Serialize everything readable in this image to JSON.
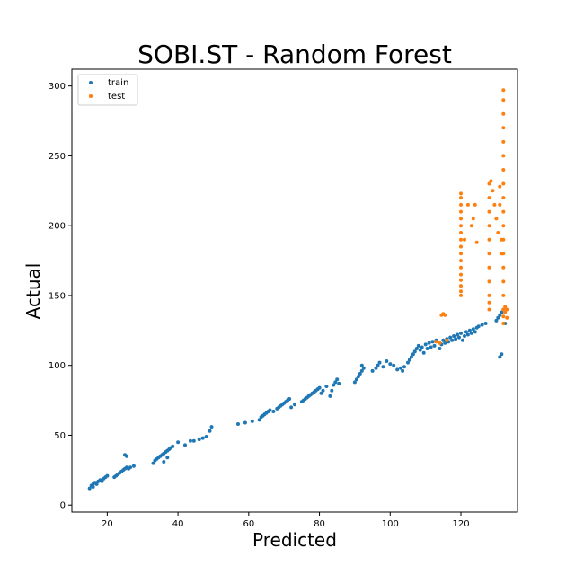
{
  "chart_data": {
    "type": "scatter",
    "title": "SOBI.ST - Random Forest",
    "xlabel": "Predicted",
    "ylabel": "Actual",
    "xlim": [
      10,
      136
    ],
    "ylim": [
      -5,
      312
    ],
    "xticks": [
      20,
      40,
      60,
      80,
      100,
      120
    ],
    "yticks": [
      0,
      50,
      100,
      150,
      200,
      250,
      300
    ],
    "grid": false,
    "legend_position": "top-left",
    "series": [
      {
        "name": "train",
        "color": "#1f77b4",
        "points": [
          [
            15,
            12
          ],
          [
            15.5,
            14
          ],
          [
            16,
            15
          ],
          [
            16.5,
            16
          ],
          [
            17,
            15
          ],
          [
            17.5,
            17
          ],
          [
            18,
            18
          ],
          [
            18.5,
            17
          ],
          [
            19,
            19
          ],
          [
            19.5,
            20
          ],
          [
            20,
            21
          ],
          [
            16,
            13
          ],
          [
            17,
            16
          ],
          [
            22,
            20
          ],
          [
            22.5,
            21
          ],
          [
            23,
            22
          ],
          [
            23.5,
            23
          ],
          [
            24,
            24
          ],
          [
            24.5,
            25
          ],
          [
            25,
            26
          ],
          [
            25.5,
            27
          ],
          [
            26,
            26
          ],
          [
            26.5,
            27
          ],
          [
            27.5,
            28
          ],
          [
            25,
            36
          ],
          [
            25.5,
            35
          ],
          [
            33,
            30
          ],
          [
            33.5,
            32
          ],
          [
            34,
            33
          ],
          [
            34.5,
            34
          ],
          [
            35,
            35
          ],
          [
            35.5,
            36
          ],
          [
            36,
            37
          ],
          [
            36.5,
            38
          ],
          [
            37,
            39
          ],
          [
            37.5,
            40
          ],
          [
            38,
            41
          ],
          [
            38.5,
            42
          ],
          [
            36,
            31
          ],
          [
            37,
            34
          ],
          [
            40,
            45
          ],
          [
            42,
            43
          ],
          [
            43.5,
            46
          ],
          [
            44.5,
            46
          ],
          [
            46,
            47
          ],
          [
            47,
            48
          ],
          [
            48,
            49
          ],
          [
            49,
            53
          ],
          [
            49.5,
            56
          ],
          [
            57,
            58
          ],
          [
            59,
            59
          ],
          [
            61,
            60
          ],
          [
            63,
            61
          ],
          [
            63.5,
            63
          ],
          [
            64,
            64
          ],
          [
            64.5,
            65
          ],
          [
            65,
            66
          ],
          [
            65.5,
            67
          ],
          [
            66,
            68
          ],
          [
            67,
            67
          ],
          [
            68,
            69
          ],
          [
            68.5,
            70
          ],
          [
            69,
            71
          ],
          [
            69.5,
            72
          ],
          [
            70,
            73
          ],
          [
            70.5,
            74
          ],
          [
            71,
            75
          ],
          [
            71.5,
            76
          ],
          [
            72,
            70
          ],
          [
            73,
            72
          ],
          [
            75,
            74
          ],
          [
            75.5,
            75
          ],
          [
            76,
            76
          ],
          [
            76.5,
            77
          ],
          [
            77,
            78
          ],
          [
            77.5,
            79
          ],
          [
            78,
            80
          ],
          [
            78.5,
            81
          ],
          [
            79,
            82
          ],
          [
            79.5,
            83
          ],
          [
            80,
            84
          ],
          [
            80.5,
            80
          ],
          [
            81,
            82
          ],
          [
            82,
            85
          ],
          [
            83,
            78
          ],
          [
            83.5,
            82
          ],
          [
            84,
            86
          ],
          [
            84.5,
            88
          ],
          [
            85,
            90
          ],
          [
            85.5,
            87
          ],
          [
            90,
            88
          ],
          [
            90.5,
            90
          ],
          [
            91,
            92
          ],
          [
            91.5,
            94
          ],
          [
            92,
            96
          ],
          [
            92.5,
            98
          ],
          [
            92,
            100
          ],
          [
            95,
            96
          ],
          [
            96,
            98
          ],
          [
            96.5,
            100
          ],
          [
            97,
            102
          ],
          [
            98,
            99
          ],
          [
            99,
            103
          ],
          [
            100,
            101
          ],
          [
            101,
            100
          ],
          [
            102,
            97
          ],
          [
            103,
            98
          ],
          [
            103.5,
            96
          ],
          [
            104,
            99
          ],
          [
            105,
            102
          ],
          [
            105.5,
            104
          ],
          [
            106,
            106
          ],
          [
            106.5,
            108
          ],
          [
            107,
            110
          ],
          [
            107.5,
            112
          ],
          [
            108,
            114
          ],
          [
            108.5,
            111
          ],
          [
            109,
            113
          ],
          [
            109.5,
            109
          ],
          [
            110,
            115
          ],
          [
            110.5,
            112
          ],
          [
            111,
            116
          ],
          [
            111.5,
            113
          ],
          [
            112,
            117
          ],
          [
            112.5,
            114
          ],
          [
            113,
            118
          ],
          [
            114,
            112
          ],
          [
            114.5,
            115
          ],
          [
            115,
            118
          ],
          [
            115.5,
            116
          ],
          [
            116,
            119
          ],
          [
            116.5,
            117
          ],
          [
            117,
            120
          ],
          [
            117.5,
            118
          ],
          [
            118,
            121
          ],
          [
            118.5,
            119
          ],
          [
            119,
            122
          ],
          [
            119.5,
            120
          ],
          [
            120,
            123
          ],
          [
            120.5,
            118
          ],
          [
            121,
            121
          ],
          [
            121.5,
            124
          ],
          [
            122,
            122
          ],
          [
            122.5,
            125
          ],
          [
            123,
            123
          ],
          [
            123.5,
            126
          ],
          [
            124,
            124
          ],
          [
            124.5,
            127
          ],
          [
            125,
            128
          ],
          [
            126,
            129
          ],
          [
            127,
            130
          ],
          [
            130,
            132
          ],
          [
            130.5,
            134
          ],
          [
            131,
            136
          ],
          [
            131.5,
            138
          ],
          [
            132,
            140
          ],
          [
            132.5,
            130
          ],
          [
            131,
            106
          ],
          [
            131.5,
            108
          ]
        ]
      },
      {
        "name": "test",
        "color": "#ff7f0e",
        "points": [
          [
            113,
            117
          ],
          [
            114,
            116
          ],
          [
            114.5,
            136
          ],
          [
            115,
            137
          ],
          [
            115.5,
            136
          ],
          [
            116,
            118
          ],
          [
            120,
            150
          ],
          [
            120,
            153
          ],
          [
            120,
            157
          ],
          [
            120,
            161
          ],
          [
            120,
            165
          ],
          [
            120,
            170
          ],
          [
            120,
            175
          ],
          [
            120,
            180
          ],
          [
            120,
            185
          ],
          [
            120,
            190
          ],
          [
            120,
            195
          ],
          [
            120,
            200
          ],
          [
            120,
            205
          ],
          [
            120,
            210
          ],
          [
            120,
            215
          ],
          [
            120,
            220
          ],
          [
            120,
            223
          ],
          [
            121,
            190
          ],
          [
            122,
            215
          ],
          [
            123,
            200
          ],
          [
            123.5,
            205
          ],
          [
            124,
            215
          ],
          [
            124.5,
            188
          ],
          [
            128,
            140
          ],
          [
            128,
            145
          ],
          [
            128,
            150
          ],
          [
            128,
            160
          ],
          [
            128,
            170
          ],
          [
            128,
            180
          ],
          [
            128,
            190
          ],
          [
            128,
            200
          ],
          [
            128,
            210
          ],
          [
            128,
            220
          ],
          [
            128,
            230
          ],
          [
            128.5,
            232
          ],
          [
            129,
            225
          ],
          [
            129.5,
            215
          ],
          [
            130,
            205
          ],
          [
            130.5,
            195
          ],
          [
            131,
            215
          ],
          [
            131,
            228
          ],
          [
            131.5,
            180
          ],
          [
            131.5,
            190
          ],
          [
            132,
            130
          ],
          [
            132,
            135
          ],
          [
            132,
            140
          ],
          [
            132,
            150
          ],
          [
            132,
            160
          ],
          [
            132,
            170
          ],
          [
            132,
            180
          ],
          [
            132,
            190
          ],
          [
            132,
            200
          ],
          [
            132,
            210
          ],
          [
            132,
            220
          ],
          [
            132,
            230
          ],
          [
            132,
            240
          ],
          [
            132,
            250
          ],
          [
            132,
            260
          ],
          [
            132,
            270
          ],
          [
            132,
            280
          ],
          [
            132,
            290
          ],
          [
            132,
            297
          ],
          [
            132.5,
            142
          ],
          [
            132.5,
            138
          ],
          [
            133,
            134
          ],
          [
            133,
            140
          ]
        ]
      }
    ]
  }
}
